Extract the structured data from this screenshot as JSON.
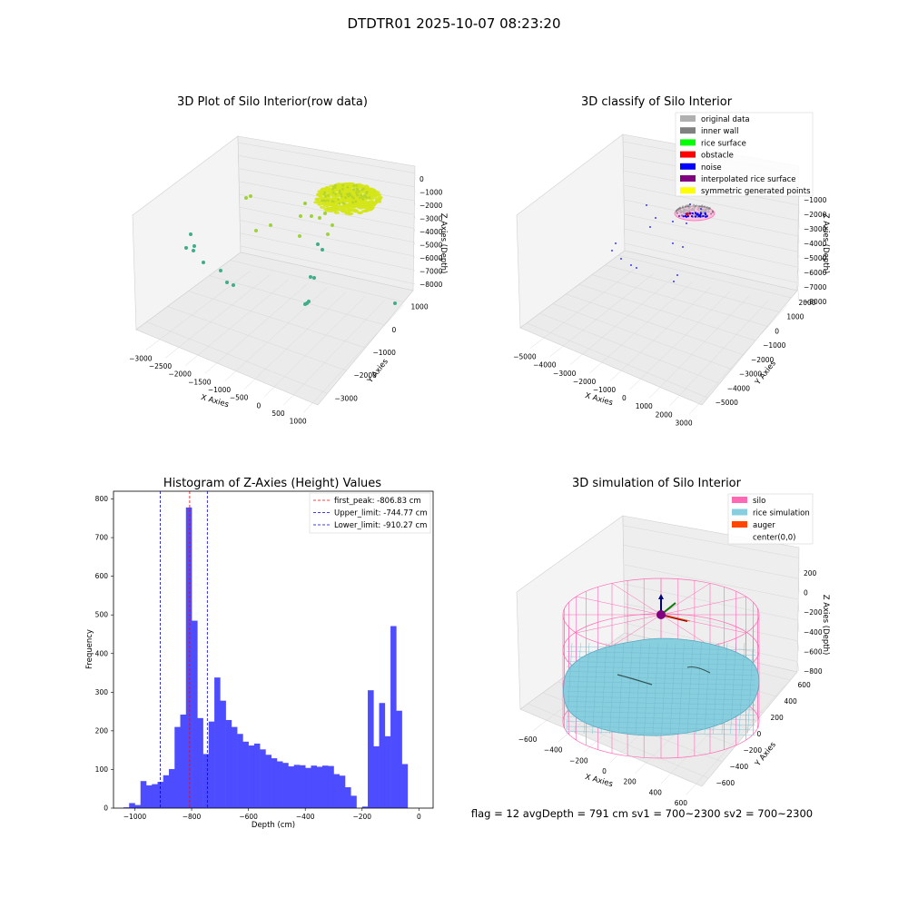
{
  "figure": {
    "suptitle": "DTDTR01 2025-10-07 08:23:20",
    "footer": "flag = 12   avgDepth = 791 cm   sv1 = 700~2300   sv2 = 700~2300"
  },
  "chart_data": [
    {
      "type": "scatter",
      "title": "3D Plot of Silo Interior(row data)",
      "xlabel": "X Axies",
      "ylabel": "Y Axies",
      "zlabel": "Z Axies (Depth)",
      "xticks": [
        "−3000",
        "−2500",
        "−2000",
        "−1500",
        "−1000",
        "−500",
        "0",
        "500",
        "1000"
      ],
      "yticks": [
        "−3000",
        "−2000",
        "−1000",
        "0",
        "1000"
      ],
      "zticks": [
        "−8000",
        "−7000",
        "−6000",
        "−5000",
        "−4000",
        "−3000",
        "−2000",
        "−1000",
        "0"
      ],
      "colors": {
        "surface": "#d4e619",
        "mid": "#9fd23a",
        "deep": "#3fae86"
      }
    },
    {
      "type": "scatter",
      "title": "3D classify of Silo Interior",
      "xlabel": "X Axies",
      "ylabel": "Y Axies",
      "zlabel": "Z Axies (Depth)",
      "xticks": [
        "−5000",
        "−4000",
        "−3000",
        "−2000",
        "−1000",
        "0",
        "1000",
        "2000",
        "3000"
      ],
      "yticks": [
        "−5000",
        "−4000",
        "−3000",
        "−2000",
        "−1000",
        "0",
        "1000",
        "2000"
      ],
      "zticks": [
        "−8000",
        "−7000",
        "−6000",
        "−5000",
        "−4000",
        "−3000",
        "−2000",
        "−1000"
      ],
      "legend": [
        {
          "label": "original data",
          "color": "#b0b0b0"
        },
        {
          "label": "inner wall",
          "color": "#808080"
        },
        {
          "label": "rice surface",
          "color": "#00ff00"
        },
        {
          "label": "obstacle",
          "color": "#ff0000"
        },
        {
          "label": "noise",
          "color": "#0000ff"
        },
        {
          "label": "interpolated rice surface",
          "color": "#800080"
        },
        {
          "label": "symmetric generated points",
          "color": "#ffff00"
        }
      ],
      "legend_position": "top-right"
    },
    {
      "type": "bar",
      "title": "Histogram of Z-Axies (Height) Values",
      "xlabel": "Depth (cm)",
      "ylabel": "Frequency",
      "xlim": [
        -1075,
        50
      ],
      "ylim": [
        0,
        820
      ],
      "xticks": [
        -1000,
        -800,
        -600,
        -400,
        -200,
        0
      ],
      "yticks": [
        0,
        100,
        200,
        300,
        400,
        500,
        600,
        700,
        800
      ],
      "bin_start": -1040,
      "bin_width": 20,
      "values": [
        2,
        13,
        8,
        70,
        59,
        62,
        68,
        85,
        101,
        210,
        242,
        778,
        485,
        233,
        140,
        224,
        338,
        278,
        228,
        210,
        192,
        172,
        162,
        167,
        152,
        138,
        129,
        121,
        117,
        108,
        112,
        111,
        104,
        110,
        107,
        110,
        109,
        88,
        84,
        54,
        32,
        0,
        4,
        305,
        160,
        272,
        186,
        471,
        252,
        114
      ],
      "bar_color": "#4d4dff",
      "lines": [
        {
          "label": "first_peak: -806.83 cm",
          "x": -806.83,
          "color": "#ff0000"
        },
        {
          "label": "Upper_limit: -744.77 cm",
          "x": -744.77,
          "color": "#0000cc"
        },
        {
          "label": "Lower_limit: -910.27 cm",
          "x": -910.27,
          "color": "#0000cc"
        }
      ],
      "legend_position": "top-right"
    },
    {
      "type": "surface",
      "title": "3D simulation of Silo Interior",
      "xlabel": "X Axies",
      "ylabel": "Y Axies",
      "zlabel": "Z Axies (Depth)",
      "xticks": [
        "−600",
        "−400",
        "−200",
        "0",
        "200",
        "400",
        "600"
      ],
      "yticks": [
        "−600",
        "−400",
        "−200",
        "0",
        "200",
        "400",
        "600"
      ],
      "zticks": [
        "−800",
        "−600",
        "−400",
        "−200",
        "0",
        "200"
      ],
      "legend": [
        {
          "label": "silo",
          "color": "#ff69b4"
        },
        {
          "label": "rice simulation",
          "color": "#87cedf"
        },
        {
          "label": "auger",
          "color": "#ff4500"
        },
        {
          "label": "center(0,0)",
          "color": ""
        }
      ],
      "legend_position": "top-right"
    }
  ]
}
